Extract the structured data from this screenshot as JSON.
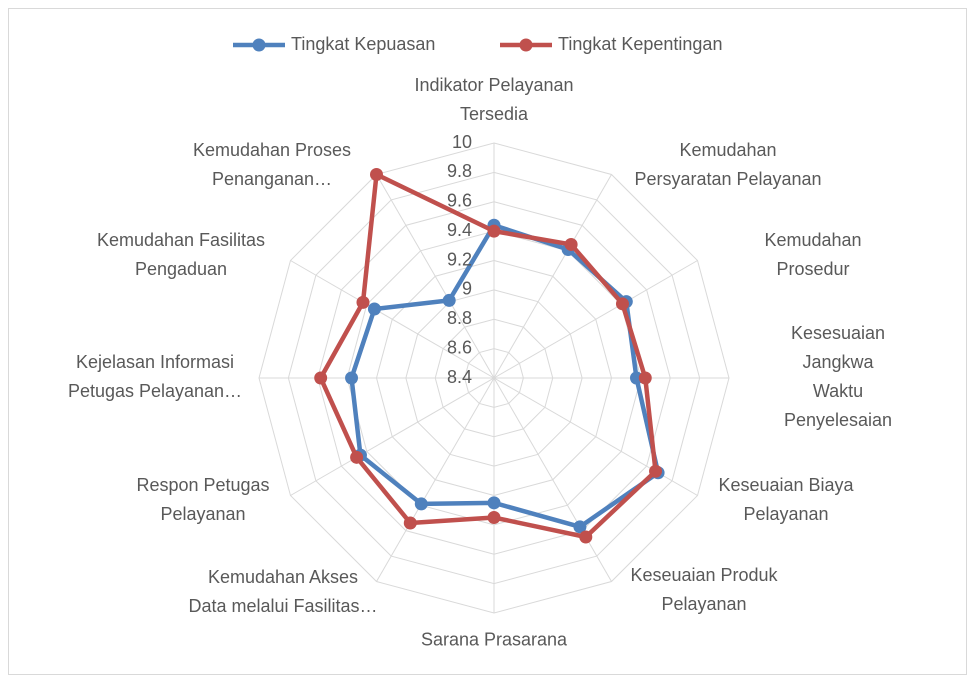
{
  "chart_data": {
    "type": "radar",
    "categories": [
      "Indikator Pelayanan\nTersedia",
      "Kemudahan\nPersyaratan Pelayanan",
      "Kemudahan Prosedur",
      "Kesesuaian Jangkwa\nWaktu Penyelesaian",
      "Keseuaian Biaya\nPelayanan",
      "Keseuaian Produk\nPelayanan",
      "Sarana Prasarana",
      "Kemudahan Akses\nData melalui Fasilitas…",
      "Respon Petugas\nPelayanan",
      "Kejelasan Informasi\nPetugas Pelayanan…",
      "Kemudahan Fasilitas\nPengaduan",
      "Kemudahan Proses\nPenanganan…"
    ],
    "series": [
      {
        "name": "Tingkat Kepuasan",
        "color": "#4f81bd",
        "values": [
          9.44,
          9.41,
          9.44,
          9.37,
          9.69,
          9.57,
          9.25,
          9.39,
          9.45,
          9.37,
          9.34,
          9.01
        ]
      },
      {
        "name": "Tingkat Kepentingan",
        "color": "#c0504d",
        "values": [
          9.4,
          9.45,
          9.41,
          9.43,
          9.67,
          9.65,
          9.35,
          9.54,
          9.48,
          9.58,
          9.43,
          10.0
        ]
      }
    ],
    "ylim": [
      8.4,
      10
    ],
    "yticks": [
      8.4,
      8.6,
      8.8,
      9,
      9.2,
      9.4,
      9.6,
      9.8,
      10
    ],
    "grid": true,
    "legend": "top"
  }
}
